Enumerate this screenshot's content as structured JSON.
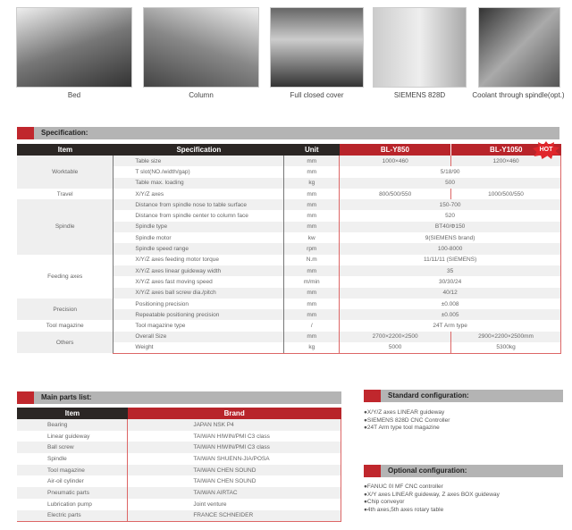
{
  "photos": [
    {
      "caption": "Bed"
    },
    {
      "caption": "Column"
    },
    {
      "caption": "Full closed cover"
    },
    {
      "caption": "SIEMENS 828D"
    },
    {
      "caption": "Coolant through spindle(opt.)"
    }
  ],
  "spec": {
    "title": "Specification:",
    "headers": {
      "item": "Item",
      "spec": "Specification",
      "unit": "Unit",
      "m1": "BL-Y850",
      "m2": "BL-Y1050"
    },
    "hot": "HOT",
    "groups": {
      "worktable": "Worktable",
      "travel": "Travel",
      "spindle": "Spindle",
      "feeding": "Feeding axes",
      "precision": "Precision",
      "tool": "Tool magazine",
      "others": "Others"
    },
    "rows": [
      {
        "spec": "Table size",
        "unit": "mm",
        "v1": "1000×460",
        "v2": "1200×460"
      },
      {
        "spec": "T slot(NO./width/gap)",
        "unit": "mm",
        "v": "5/18/90"
      },
      {
        "spec": "Table max. loading",
        "unit": "kg",
        "v": "500"
      },
      {
        "spec": "X/Y/Z axes",
        "unit": "mm",
        "v1": "800/500/550",
        "v2": "1000/500/550"
      },
      {
        "spec": "Distance from spindle nose to table surface",
        "unit": "mm",
        "v": "150-700"
      },
      {
        "spec": "Distance from spindle center to column face",
        "unit": "mm",
        "v": "520"
      },
      {
        "spec": "Spindle type",
        "unit": "mm",
        "v": "BT40/Φ150"
      },
      {
        "spec": "Spindle motor",
        "unit": "kw",
        "v": "9(SIEMENS brand)"
      },
      {
        "spec": "Spindle speed range",
        "unit": "rpm",
        "v": "100-8000"
      },
      {
        "spec": "X/Y/Z axes feeding motor torque",
        "unit": "N.m",
        "v": "11/11/11 (SIEMENS)"
      },
      {
        "spec": "X/Y/Z axes linear guideway width",
        "unit": "mm",
        "v": "35"
      },
      {
        "spec": "X/Y/Z axes fast moving speed",
        "unit": "m/min",
        "v": "30/30/24"
      },
      {
        "spec": "X/Y/Z axes ball screw dia./pitch",
        "unit": "mm",
        "v": "40/12"
      },
      {
        "spec": "Positioning precision",
        "unit": "mm",
        "v": "±0.008"
      },
      {
        "spec": "Repeatable positioning precision",
        "unit": "mm",
        "v": "±0.005"
      },
      {
        "spec": "Tool magazine type",
        "unit": "/",
        "v": "24T Arm type"
      },
      {
        "spec": "Overall Size",
        "unit": "mm",
        "v1": "2700×2200×2500",
        "v2": "2900×2200×2500mm"
      },
      {
        "spec": "Weight",
        "unit": "kg",
        "v1": "5000",
        "v2": "5300kg"
      }
    ]
  },
  "parts": {
    "title": "Main parts list:",
    "headers": {
      "item": "Item",
      "brand": "Brand"
    },
    "rows": [
      {
        "item": "Bearing",
        "brand": "JAPAN NSK P4"
      },
      {
        "item": "Linear guideway",
        "brand": "TAIWAN HIWIN/PMI C3 class"
      },
      {
        "item": "Ball screw",
        "brand": "TAIWAN HIWIN/PMI C3 class"
      },
      {
        "item": "Spindle",
        "brand": "TAIWAN SHUENN-JIA/POSA"
      },
      {
        "item": "Tool magazine",
        "brand": "TAIWAN CHEN SOUND"
      },
      {
        "item": "Air-oil cylinder",
        "brand": "TAIWAN CHEN SOUND"
      },
      {
        "item": "Pneumatic parts",
        "brand": "TAIWAN AIRTAC"
      },
      {
        "item": "Lubrication pump",
        "brand": "Joint venture"
      },
      {
        "item": "Electric parts",
        "brand": "FRANCE SCHNEIDER"
      }
    ]
  },
  "standard": {
    "title": "Standard configuration:",
    "items": [
      "●X/Y/Z axes LINEAR guideway",
      "●SIEMENS 828D CNC Controller",
      "●24T Arm type tool magazine"
    ]
  },
  "optional": {
    "title": "Optional configuration:",
    "items": [
      "●FANUC 0I MF CNC controller",
      "●X/Y axes LINEAR guideway, Z axes BOX guideway",
      "●Chip conveyor",
      "●4th axes,5th axes rotary table"
    ]
  },
  "colors": {
    "accent": "#c0272d",
    "header_dark": "#2b2624",
    "bar_gray": "#b4b4b4"
  }
}
